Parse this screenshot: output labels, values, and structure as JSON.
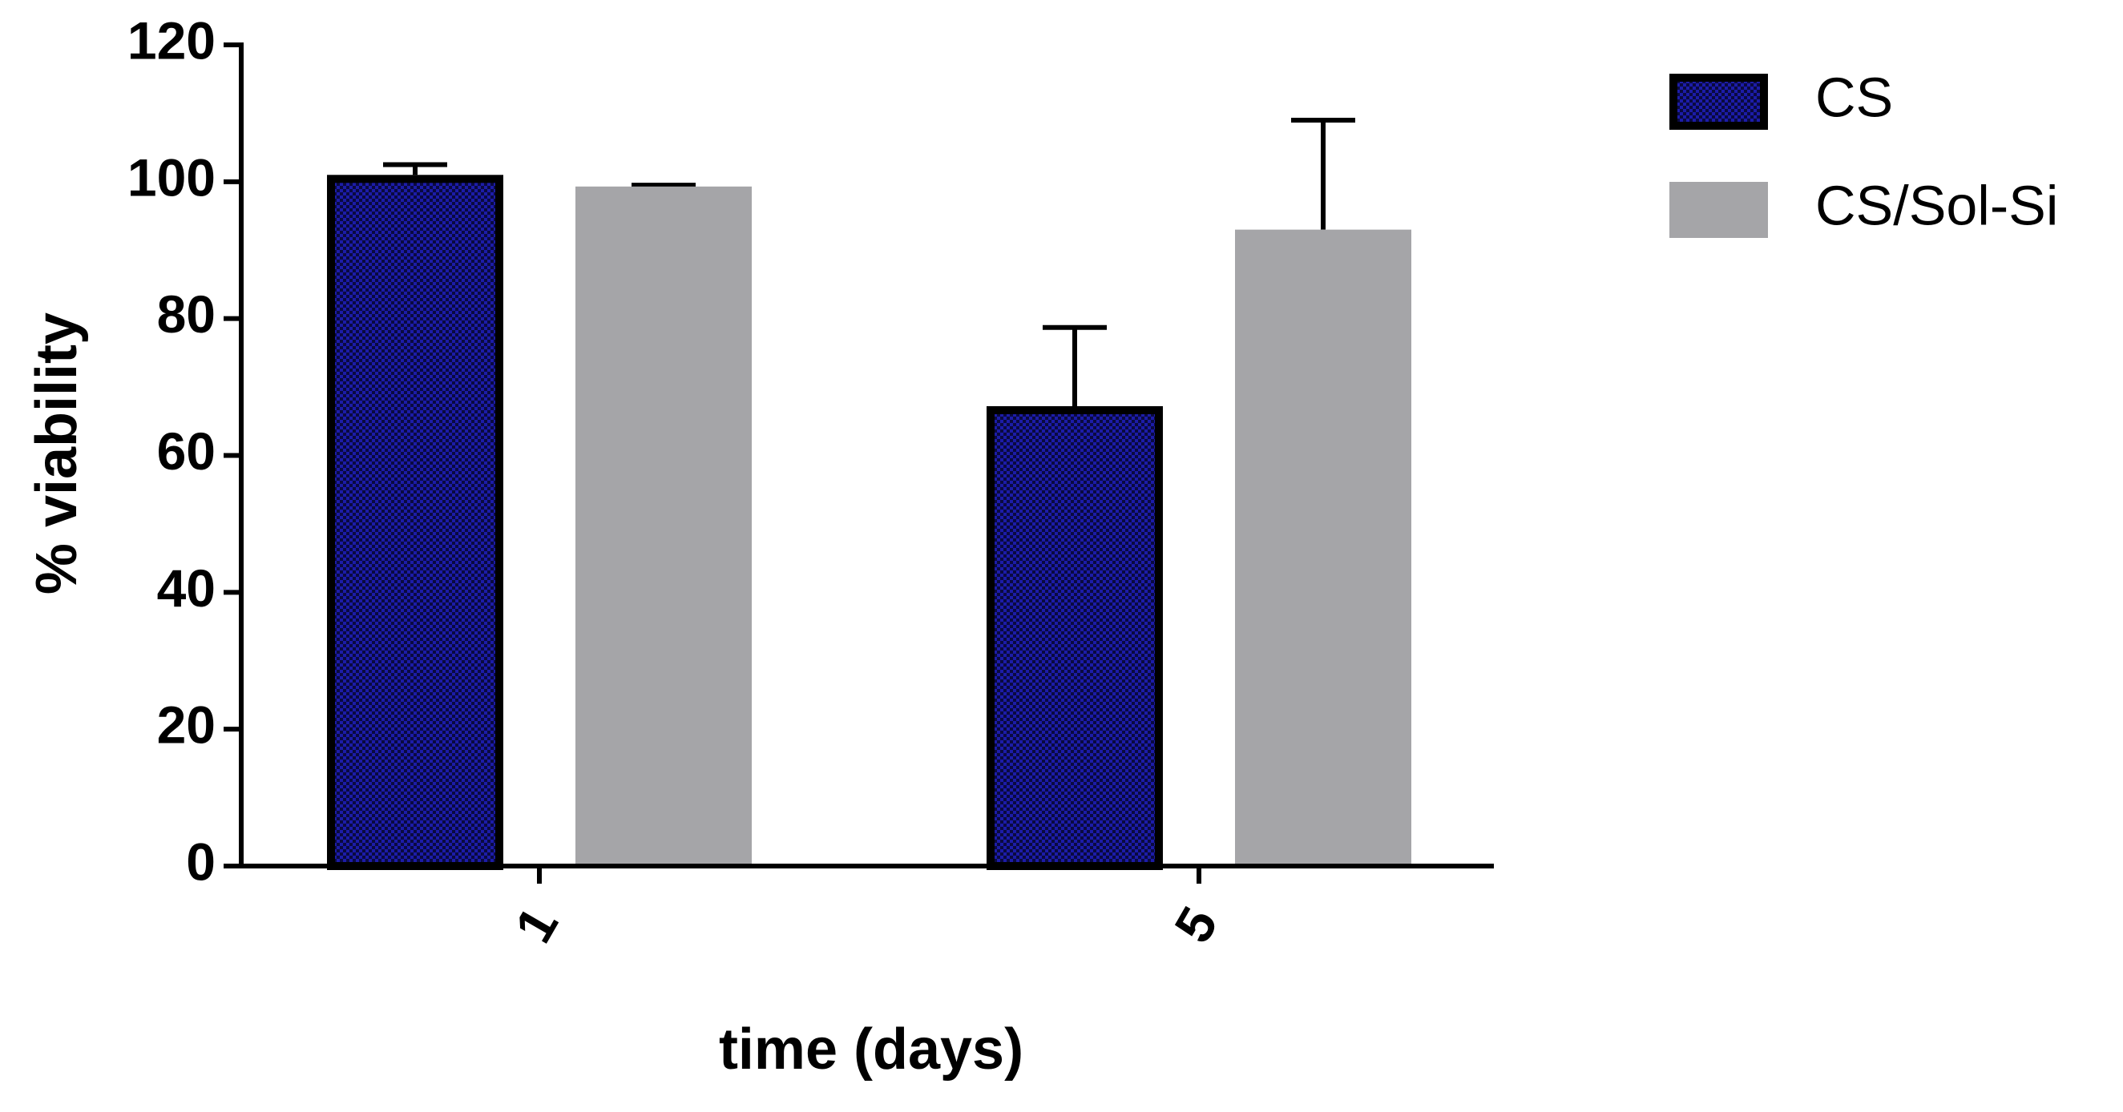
{
  "chart_data": {
    "type": "bar",
    "x_label": "time (days)",
    "y_label": "% viability",
    "categories": [
      "1",
      "5"
    ],
    "series": [
      {
        "name": "CS",
        "color": "#1c1ca8",
        "values": [
          101,
          67.2
        ],
        "errors": [
          1.5,
          11.5
        ]
      },
      {
        "name": "CS/Sol-Si",
        "color": "#a5a5a8",
        "values": [
          99.3,
          93
        ],
        "errors": [
          0.2,
          16
        ]
      }
    ],
    "ylim": [
      0,
      120
    ],
    "yticks": [
      0,
      20,
      40,
      60,
      80,
      100,
      120
    ],
    "legend": "top-right"
  }
}
